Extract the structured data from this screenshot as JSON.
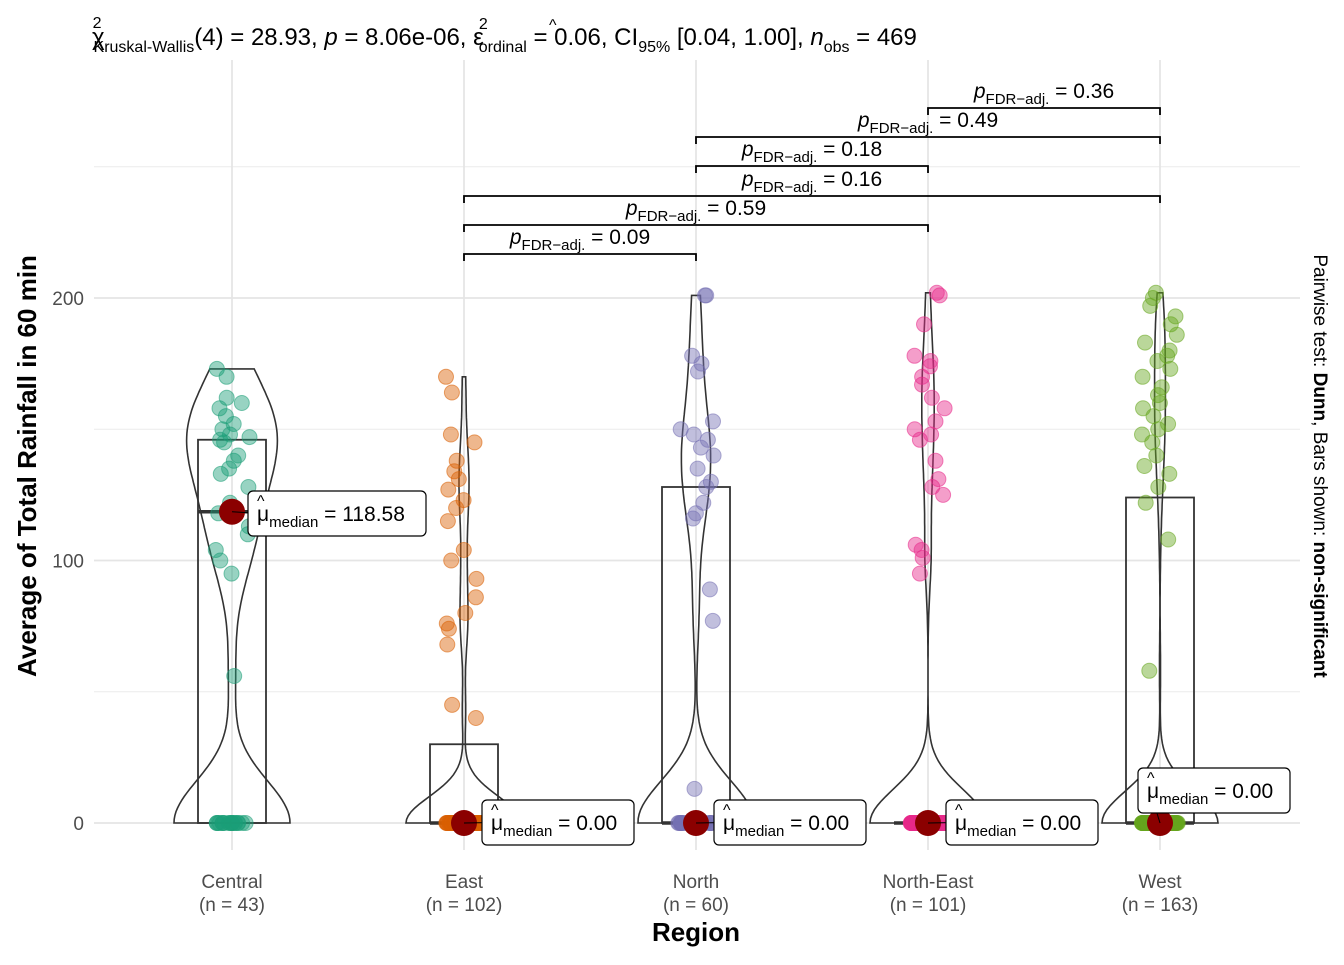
{
  "chart_data": {
    "type": "box-violin-scatter",
    "title": "χ²Kruskal-Wallis(4) = 28.93, p = 8.06e-06, ε̂²ordinal = 0.06, CI95% [0.04, 1.00], nobs = 469",
    "title_parts": {
      "chi": "χ",
      "sup2": "2",
      "kw_sub": "Kruskal-Wallis",
      "stat": "(4) = 28.93, ",
      "p": "p",
      "p_val": " = 8.06e-06, ",
      "eps": "ε",
      "ord_sub": "ordinal",
      "eps_val": " = 0.06, CI",
      "ci_sub": "95%",
      "ci_val": " [0.04, 1.00], ",
      "n": "n",
      "obs_sub": "obs",
      "n_val": " = 469"
    },
    "xlabel": "Region",
    "ylabel": "Average of Total Rainfall in 60 min",
    "caption": {
      "prefix": "Pairwise test: ",
      "test": "Dunn",
      "mid": ", Bars shown: ",
      "bars": "non-significant"
    },
    "ylim": [
      -15,
      265
    ],
    "yticks": [
      0,
      100,
      200
    ],
    "categories": [
      "Central",
      "East",
      "North",
      "North-East",
      "West"
    ],
    "n_labels": [
      "(n = 43)",
      "(n = 102)",
      "(n = 60)",
      "(n = 101)",
      "(n = 163)"
    ],
    "colors": [
      "#1B9E77",
      "#D95F02",
      "#7570B3",
      "#E7298A",
      "#66A61E"
    ],
    "median_color": "#8B0000",
    "boxes": [
      {
        "q1": 0,
        "median": 118.58,
        "q3": 146
      },
      {
        "q1": 0,
        "median": 0,
        "q3": 30
      },
      {
        "q1": 0,
        "median": 0,
        "q3": 128
      },
      {
        "q1": 0,
        "median": 0,
        "q3": 0
      },
      {
        "q1": 0,
        "median": 0,
        "q3": 124
      }
    ],
    "median_labels": [
      "= 118.58",
      "= 0.00",
      "= 0.00",
      "= 0.00",
      "= 0.00"
    ],
    "median_symbol": "μ̂",
    "median_sub": "median",
    "points": [
      [
        0,
        0,
        0,
        0,
        0,
        0,
        0,
        0,
        0,
        0,
        0,
        0,
        0,
        0,
        0,
        0,
        0,
        0,
        56,
        95,
        100,
        104,
        110,
        113,
        118,
        122,
        128,
        133,
        135,
        138,
        140,
        145,
        146,
        147,
        148,
        150,
        152,
        155,
        158,
        160,
        162,
        170,
        173
      ],
      [
        0,
        0,
        0,
        0,
        0,
        0,
        0,
        0,
        0,
        0,
        0,
        0,
        0,
        0,
        0,
        0,
        0,
        0,
        0,
        0,
        0,
        0,
        0,
        0,
        0,
        0,
        0,
        0,
        0,
        0,
        0,
        0,
        0,
        0,
        0,
        0,
        0,
        0,
        0,
        0,
        0,
        0,
        0,
        0,
        0,
        0,
        0,
        0,
        0,
        0,
        0,
        0,
        0,
        0,
        0,
        0,
        0,
        0,
        0,
        0,
        0,
        0,
        0,
        0,
        0,
        0,
        0,
        0,
        40,
        45,
        68,
        74,
        76,
        80,
        86,
        93,
        100,
        104,
        115,
        120,
        123,
        127,
        131,
        134,
        138,
        145,
        148,
        164,
        170
      ],
      [
        0,
        0,
        0,
        0,
        0,
        0,
        0,
        0,
        0,
        0,
        0,
        0,
        0,
        0,
        0,
        0,
        0,
        0,
        0,
        0,
        0,
        0,
        0,
        0,
        0,
        0,
        0,
        0,
        0,
        0,
        0,
        0,
        0,
        0,
        0,
        0,
        13,
        77,
        89,
        116,
        118,
        122,
        128,
        130,
        135,
        140,
        143,
        146,
        148,
        150,
        153,
        172,
        175,
        178,
        201,
        201
      ],
      [
        0,
        0,
        0,
        0,
        0,
        0,
        0,
        0,
        0,
        0,
        0,
        0,
        0,
        0,
        0,
        0,
        0,
        0,
        0,
        0,
        0,
        0,
        0,
        0,
        0,
        0,
        0,
        0,
        0,
        0,
        0,
        0,
        0,
        0,
        0,
        0,
        0,
        0,
        0,
        0,
        0,
        0,
        0,
        0,
        0,
        0,
        0,
        0,
        0,
        0,
        0,
        0,
        0,
        0,
        0,
        0,
        0,
        0,
        0,
        0,
        0,
        0,
        0,
        0,
        0,
        0,
        0,
        0,
        0,
        0,
        0,
        0,
        0,
        0,
        0,
        0,
        95,
        101,
        104,
        106,
        125,
        128,
        131,
        138,
        146,
        148,
        150,
        153,
        158,
        162,
        167,
        170,
        174,
        176,
        178,
        190,
        201,
        202
      ],
      [
        0,
        0,
        0,
        0,
        0,
        0,
        0,
        0,
        0,
        0,
        0,
        0,
        0,
        0,
        0,
        0,
        0,
        0,
        0,
        0,
        0,
        0,
        0,
        0,
        0,
        0,
        0,
        0,
        0,
        0,
        0,
        0,
        0,
        0,
        0,
        0,
        0,
        0,
        0,
        0,
        0,
        0,
        0,
        0,
        0,
        0,
        0,
        0,
        0,
        0,
        0,
        0,
        0,
        0,
        0,
        0,
        0,
        0,
        0,
        0,
        0,
        0,
        0,
        0,
        0,
        0,
        0,
        0,
        0,
        0,
        0,
        0,
        0,
        0,
        0,
        0,
        0,
        0,
        0,
        0,
        0,
        0,
        0,
        0,
        0,
        0,
        0,
        0,
        0,
        0,
        0,
        0,
        0,
        0,
        0,
        0,
        0,
        0,
        0,
        0,
        0,
        0,
        0,
        0,
        0,
        0,
        0,
        0,
        0,
        0,
        0,
        0,
        58,
        108,
        122,
        128,
        133,
        136,
        140,
        145,
        148,
        150,
        152,
        155,
        158,
        160,
        163,
        166,
        170,
        173,
        176,
        178,
        180,
        183,
        186,
        190,
        193,
        197,
        200,
        202
      ]
    ],
    "pairwise": [
      {
        "from": 1,
        "to": 2,
        "p_sub": "FDR−adj.",
        "label": "= 0.09"
      },
      {
        "from": 1,
        "to": 3,
        "p_sub": "FDR−adj.",
        "label": "= 0.59"
      },
      {
        "from": 1,
        "to": 4,
        "p_sub": "FDR−adj.",
        "label": "= 0.16"
      },
      {
        "from": 2,
        "to": 3,
        "p_sub": "FDR−adj.",
        "label": "= 0.18"
      },
      {
        "from": 2,
        "to": 4,
        "p_sub": "FDR−adj.",
        "label": "= 0.49"
      },
      {
        "from": 3,
        "to": 4,
        "p_sub": "FDR−adj.",
        "label": "= 0.36"
      }
    ],
    "grid": true,
    "legend": "none"
  }
}
